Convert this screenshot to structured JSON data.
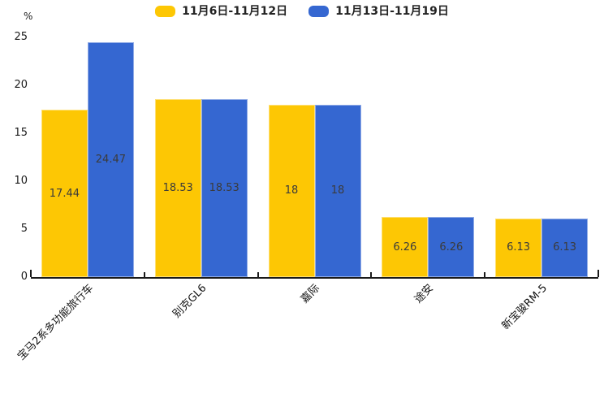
{
  "chart_data": {
    "type": "bar",
    "title": "",
    "categories": [
      "宝马2系多功能旅行车",
      "别克GL6",
      "嘉际",
      "途安",
      "新宝骏RM-5"
    ],
    "series": [
      {
        "name": "11月6日-11月12日",
        "color": "#FDC704",
        "values": [
          17.44,
          18.53,
          18,
          6.26,
          6.13
        ]
      },
      {
        "name": "11月13日-11月19日",
        "color": "#3567D1",
        "values": [
          24.47,
          18.53,
          18,
          6.26,
          6.13
        ]
      }
    ],
    "value_labels": [
      [
        "17.44",
        "24.47"
      ],
      [
        "18.53",
        "18.53"
      ],
      [
        "18",
        "18"
      ],
      [
        "6.26",
        "6.26"
      ],
      [
        "6.13",
        "6.13"
      ]
    ],
    "xlabel": "",
    "ylabel": "%",
    "yticks": [
      "0",
      "5",
      "10",
      "15",
      "20",
      "25"
    ],
    "ylim": [
      0,
      25
    ],
    "legend_position": "top",
    "grid": false,
    "axis_color": "#1a1a1a",
    "value_label_color": "#3b3b3b",
    "background_color": "#ffffff"
  }
}
